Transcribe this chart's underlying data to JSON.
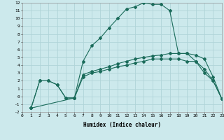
{
  "background_color": "#cce9ec",
  "grid_color": "#b0d4d8",
  "line_color": "#1a6b5a",
  "marker_color": "#1a6b5a",
  "line1_x": [
    1,
    2,
    3,
    4,
    5,
    6,
    7,
    8,
    9,
    10,
    11,
    12,
    13,
    14,
    15,
    16,
    17,
    18,
    19,
    20,
    21,
    22,
    23
  ],
  "line1_y": [
    -1.5,
    2,
    2,
    1.5,
    -0.2,
    -0.2,
    4.5,
    6.5,
    7.5,
    8.8,
    10,
    11.2,
    11.5,
    12,
    11.8,
    11.8,
    11,
    5.5,
    5.5,
    4.5,
    3,
    2,
    -0.3
  ],
  "line2_x": [
    1,
    2,
    3,
    4,
    5,
    6,
    7,
    8,
    9,
    10,
    11,
    12,
    13,
    14,
    15,
    16,
    17,
    18,
    19,
    20,
    21,
    22,
    23
  ],
  "line2_y": [
    -1.5,
    2,
    2,
    1.5,
    -0.2,
    -0.2,
    2.8,
    3.2,
    3.5,
    3.8,
    4.2,
    4.5,
    4.8,
    5.0,
    5.2,
    5.3,
    5.5,
    5.5,
    5.5,
    5.3,
    4.8,
    2.5,
    -0.3
  ],
  "line3_x": [
    1,
    6,
    7,
    8,
    9,
    10,
    11,
    12,
    13,
    14,
    15,
    16,
    17,
    18,
    19,
    20,
    21,
    22,
    23
  ],
  "line3_y": [
    -1.5,
    -0.2,
    2.5,
    3.0,
    3.2,
    3.5,
    3.8,
    4.0,
    4.3,
    4.5,
    4.8,
    4.8,
    4.8,
    4.8,
    4.5,
    4.5,
    3.5,
    2.0,
    -0.3
  ],
  "xlim": [
    0,
    23
  ],
  "ylim": [
    -2,
    12
  ],
  "xticks": [
    0,
    1,
    2,
    3,
    4,
    5,
    6,
    7,
    8,
    9,
    10,
    11,
    12,
    13,
    14,
    15,
    16,
    17,
    18,
    19,
    20,
    21,
    22,
    23
  ],
  "yticks": [
    -2,
    -1,
    0,
    1,
    2,
    3,
    4,
    5,
    6,
    7,
    8,
    9,
    10,
    11,
    12
  ],
  "xlabel": "Humidex (Indice chaleur)"
}
